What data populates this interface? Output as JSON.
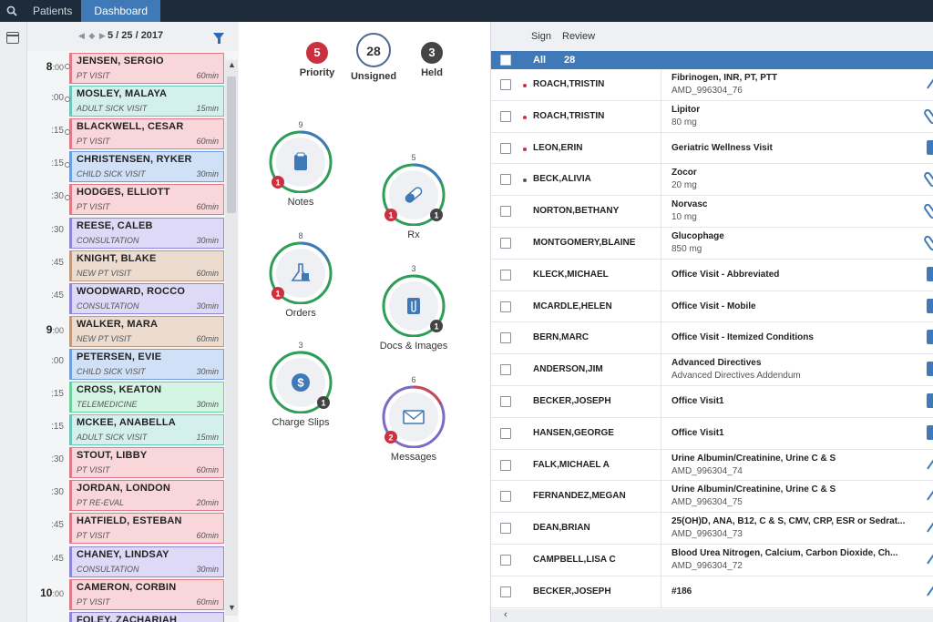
{
  "topnav": {
    "tabs": [
      {
        "label": "Patients"
      },
      {
        "label": "Dashboard"
      }
    ]
  },
  "schedule": {
    "date": "5 / 25 / 2017",
    "times": [
      {
        "label": "8",
        "sub": ":00",
        "hour": true
      },
      {
        "label": ":00"
      },
      {
        "label": ":15"
      },
      {
        "label": ":15"
      },
      {
        "label": ":30"
      },
      {
        "label": ":30"
      },
      {
        "label": ":45"
      },
      {
        "label": ":45"
      },
      {
        "label": "9",
        "sub": ":00",
        "hour": true
      },
      {
        "label": ":00"
      },
      {
        "label": ":15"
      },
      {
        "label": ":15"
      },
      {
        "label": ":30"
      },
      {
        "label": ":30"
      },
      {
        "label": ":45"
      },
      {
        "label": ":45"
      },
      {
        "label": "10",
        "sub": ":00",
        "hour": true
      }
    ],
    "appointments": [
      {
        "name": "JENSEN, SERGIO",
        "type": "PT VISIT",
        "duration": "60min",
        "color": "pink"
      },
      {
        "name": "MOSLEY, MALAYA",
        "type": "ADULT SICK VISIT",
        "duration": "15min",
        "color": "teal"
      },
      {
        "name": "BLACKWELL, CESAR",
        "type": "PT VISIT",
        "duration": "60min",
        "color": "pink"
      },
      {
        "name": "CHRISTENSEN, RYKER",
        "type": "CHILD SICK VISIT",
        "duration": "30min",
        "color": "blue"
      },
      {
        "name": "HODGES, ELLIOTT",
        "type": "PT VISIT",
        "duration": "60min",
        "color": "pink"
      },
      {
        "name": "REESE, CALEB",
        "type": "CONSULTATION",
        "duration": "30min",
        "color": "purple"
      },
      {
        "name": "KNIGHT, BLAKE",
        "type": "NEW PT VISIT",
        "duration": "60min",
        "color": "tan"
      },
      {
        "name": "WOODWARD, ROCCO",
        "type": "CONSULTATION",
        "duration": "30min",
        "color": "purple"
      },
      {
        "name": "WALKER, MARA",
        "type": "NEW PT VISIT",
        "duration": "60min",
        "color": "tan"
      },
      {
        "name": "PETERSEN, EVIE",
        "type": "CHILD SICK VISIT",
        "duration": "30min",
        "color": "blue"
      },
      {
        "name": "CROSS, KEATON",
        "type": "TELEMEDICINE",
        "duration": "30min",
        "color": "green"
      },
      {
        "name": "MCKEE, ANABELLA",
        "type": "ADULT SICK VISIT",
        "duration": "15min",
        "color": "teal"
      },
      {
        "name": "STOUT, LIBBY",
        "type": "PT VISIT",
        "duration": "60min",
        "color": "pink"
      },
      {
        "name": "JORDAN, LONDON",
        "type": "PT RE-EVAL",
        "duration": "20min",
        "color": "pink"
      },
      {
        "name": "HATFIELD, ESTEBAN",
        "type": "PT VISIT",
        "duration": "60min",
        "color": "pink"
      },
      {
        "name": "CHANEY, LINDSAY",
        "type": "CONSULTATION",
        "duration": "30min",
        "color": "purple"
      },
      {
        "name": "CAMERON, CORBIN",
        "type": "PT VISIT",
        "duration": "60min",
        "color": "pink"
      },
      {
        "name": "FOLEY, ZACHARIAH",
        "type": "",
        "duration": "",
        "color": "purple"
      }
    ]
  },
  "palette": {
    "pink": {
      "bg": "#f8d6da",
      "border": "#e07a86"
    },
    "teal": {
      "bg": "#d4f0ec",
      "border": "#6cc5b7"
    },
    "blue": {
      "bg": "#cfe0f7",
      "border": "#6d9ee0"
    },
    "purple": {
      "bg": "#ddd9f6",
      "border": "#8f86d6"
    },
    "tan": {
      "bg": "#ecdcd0",
      "border": "#c19a7e"
    },
    "green": {
      "bg": "#d4f5e4",
      "border": "#6fcf9d"
    }
  },
  "summary": {
    "priority": {
      "count": "5",
      "label": "Priority"
    },
    "unsigned": {
      "count": "28",
      "label": "Unsigned"
    },
    "held": {
      "count": "3",
      "label": "Held"
    }
  },
  "tiles": [
    {
      "id": "notes",
      "label": "Notes",
      "total": "9",
      "red": "1",
      "gray": "",
      "icon": "clipboard-icon",
      "ring": [
        "#3f79b8",
        "#2e9d57"
      ]
    },
    {
      "id": "rx",
      "label": "Rx",
      "total": "5",
      "red": "1",
      "gray": "1",
      "icon": "pill-icon",
      "ring": [
        "#3f79b8",
        "#2e9d57"
      ]
    },
    {
      "id": "orders",
      "label": "Orders",
      "total": "8",
      "red": "1",
      "gray": "",
      "icon": "flask-icon",
      "ring": [
        "#3f79b8",
        "#2e9d57"
      ]
    },
    {
      "id": "docs",
      "label": "Docs & Images",
      "total": "3",
      "red": "",
      "gray": "1",
      "icon": "paperclip-icon",
      "ring": [
        "#2e9d57",
        "#2e9d57"
      ]
    },
    {
      "id": "charge",
      "label": "Charge Slips",
      "total": "3",
      "red": "",
      "gray": "1",
      "icon": "dollar-icon",
      "ring": [
        "#2e9d57",
        "#2e9d57"
      ]
    },
    {
      "id": "messages",
      "label": "Messages",
      "total": "6",
      "red": "2",
      "gray": "",
      "icon": "envelope-icon",
      "ring": [
        "#c44a5a",
        "#7a6cc4"
      ]
    }
  ],
  "review": {
    "toolbar": {
      "sign": "Sign",
      "review": "Review"
    },
    "all_label": "All",
    "all_count": "28",
    "rows": [
      {
        "patient": "ROACH,TRISTIN",
        "dot": "red",
        "title": "Fibrinogen, INR, PT, PTT",
        "sub": "AMD_996304_76",
        "action": "pen-icon"
      },
      {
        "patient": "ROACH,TRISTIN",
        "dot": "red",
        "title": "Lipitor",
        "sub": "80 mg",
        "action": "pill-action-icon"
      },
      {
        "patient": "LEON,ERIN",
        "dot": "red",
        "title": "Geriatric Wellness Visit",
        "sub": "",
        "action": "clipboard-action-icon"
      },
      {
        "patient": "BECK,ALIVIA",
        "dot": "gray",
        "title": "Zocor",
        "sub": "20 mg",
        "action": "pill-action-icon"
      },
      {
        "patient": "NORTON,BETHANY",
        "dot": "",
        "title": "Norvasc",
        "sub": "10 mg",
        "action": "pill-action-icon"
      },
      {
        "patient": "MONTGOMERY,BLAINE",
        "dot": "",
        "title": "Glucophage",
        "sub": "850 mg",
        "action": "pill-action-icon"
      },
      {
        "patient": "KLECK,MICHAEL",
        "dot": "",
        "title": "Office Visit - Abbreviated",
        "sub": "",
        "action": "clipboard-action-icon"
      },
      {
        "patient": "MCARDLE,HELEN",
        "dot": "",
        "title": "Office Visit - Mobile",
        "sub": "",
        "action": "clipboard-action-icon"
      },
      {
        "patient": "BERN,MARC",
        "dot": "",
        "title": "Office Visit - Itemized Conditions",
        "sub": "",
        "action": "clipboard-action-icon"
      },
      {
        "patient": "ANDERSON,JIM",
        "dot": "",
        "title": "Advanced Directives",
        "sub": "Advanced Directives Addendum",
        "action": "clipboard-action-icon"
      },
      {
        "patient": "BECKER,JOSEPH",
        "dot": "",
        "title": "Office Visit1",
        "sub": "",
        "action": "clipboard-action-icon"
      },
      {
        "patient": "HANSEN,GEORGE",
        "dot": "",
        "title": "Office Visit1",
        "sub": "",
        "action": "clipboard-action-icon"
      },
      {
        "patient": "FALK,MICHAEL A",
        "dot": "",
        "title": "Urine Albumin/Creatinine, Urine C & S",
        "sub": "AMD_996304_74",
        "action": "pen-icon"
      },
      {
        "patient": "FERNANDEZ,MEGAN",
        "dot": "",
        "title": "Urine Albumin/Creatinine, Urine C & S",
        "sub": "AMD_996304_75",
        "action": "pen-icon"
      },
      {
        "patient": "DEAN,BRIAN",
        "dot": "",
        "title": "25(OH)D, ANA, B12, C & S, CMV, CRP, ESR or Sedrat...",
        "sub": "AMD_996304_73",
        "action": "pen-icon"
      },
      {
        "patient": "CAMPBELL,LISA C",
        "dot": "",
        "title": "Blood Urea Nitrogen, Calcium, Carbon Dioxide, Ch...",
        "sub": "AMD_996304_72",
        "action": "pen-icon"
      },
      {
        "patient": "BECKER,JOSEPH",
        "dot": "",
        "title": "#186",
        "sub": "",
        "action": "pen-icon"
      }
    ]
  }
}
